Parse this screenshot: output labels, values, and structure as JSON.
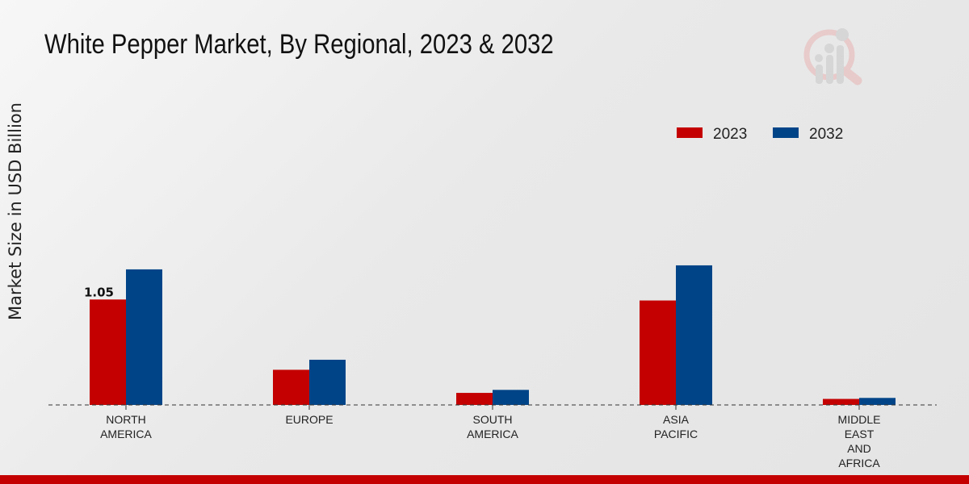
{
  "chart_data": {
    "type": "bar",
    "title": "White Pepper Market, By Regional, 2023 & 2032",
    "xlabel": "",
    "ylabel": "Market Size in USD Billion",
    "categories": [
      [
        "NORTH",
        "AMERICA"
      ],
      [
        "EUROPE"
      ],
      [
        "SOUTH",
        "AMERICA"
      ],
      [
        "ASIA",
        "PACIFIC"
      ],
      [
        "MIDDLE",
        "EAST",
        "AND",
        "AFRICA"
      ]
    ],
    "series": [
      {
        "name": "2023",
        "color": "#c40000",
        "values": [
          1.05,
          0.35,
          0.12,
          1.04,
          0.06
        ]
      },
      {
        "name": "2032",
        "color": "#004488",
        "values": [
          1.35,
          0.45,
          0.15,
          1.39,
          0.07
        ]
      }
    ],
    "data_labels": [
      {
        "series": 0,
        "category": 0,
        "text": "1.05"
      }
    ],
    "ylim": [
      0,
      3.2
    ],
    "grid": false,
    "legend_placement": "top-right"
  },
  "colors": {
    "accent": "#c40000",
    "secondary": "#004488"
  },
  "logo": {
    "icon": "magnifier-bar-chart-logo"
  }
}
